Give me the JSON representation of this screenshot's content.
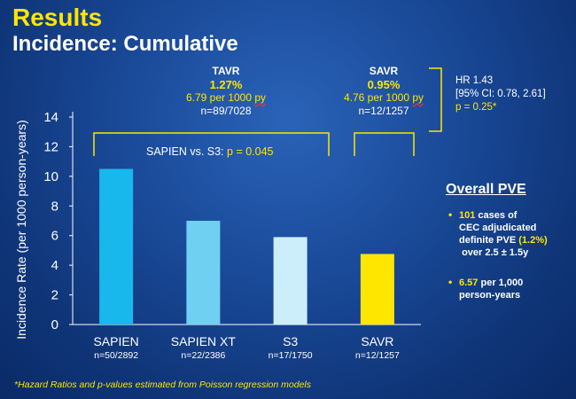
{
  "slide": {
    "title": "Results",
    "subtitle": "Incidence: Cumulative",
    "footnote": "*Hazard Ratios and p-values estimated from Poisson regression models"
  },
  "groups": {
    "tavr": {
      "label": "TAVR",
      "pct": "1.27%",
      "rate_value": "6.79",
      "rate_unit": "per 1000",
      "rate_suffix": "py",
      "n": "n=89/7028"
    },
    "savr": {
      "label": "SAVR",
      "pct": "0.95%",
      "rate_value": "4.76",
      "rate_unit": "per 1000",
      "rate_suffix": "py",
      "n": "n=12/1257"
    }
  },
  "comparison": {
    "label": "SAPIEN vs. S3:",
    "p": "p = 0.045"
  },
  "hazard": {
    "line1": "HR 1.43",
    "line2": "[95% CI: 0.78, 2.61]",
    "line3": "p = 0.25*"
  },
  "overall": {
    "heading": "Overall PVE",
    "b1_num": "101",
    "b1_a": "cases of",
    "b1_b": "CEC adjudicated",
    "b1_c": "definite PVE",
    "b1_pct": "(1.2%)",
    "b1_d": "over 2.5 ± 1.5y",
    "b2_num": "6.57",
    "b2_a": "per 1,000",
    "b2_b": "person-years"
  },
  "chart_data": {
    "type": "bar",
    "title": "",
    "ylabel": "Incidence Rate (per 1000 person-years)",
    "xlabel": "",
    "ylim": [
      0,
      14
    ],
    "yticks": [
      0,
      2,
      4,
      6,
      8,
      10,
      12,
      14
    ],
    "categories": [
      "SAPIEN",
      "SAPIEN XT",
      "S3",
      "SAVR"
    ],
    "sublabels": [
      "n=50/2892",
      "n=22/2386",
      "n=17/1750",
      "n=12/1257"
    ],
    "values": [
      10.5,
      7.0,
      5.9,
      4.76
    ],
    "colors": [
      "#19b8ec",
      "#6fd0f2",
      "#cceefb",
      "#ffe600"
    ],
    "grid": false
  }
}
